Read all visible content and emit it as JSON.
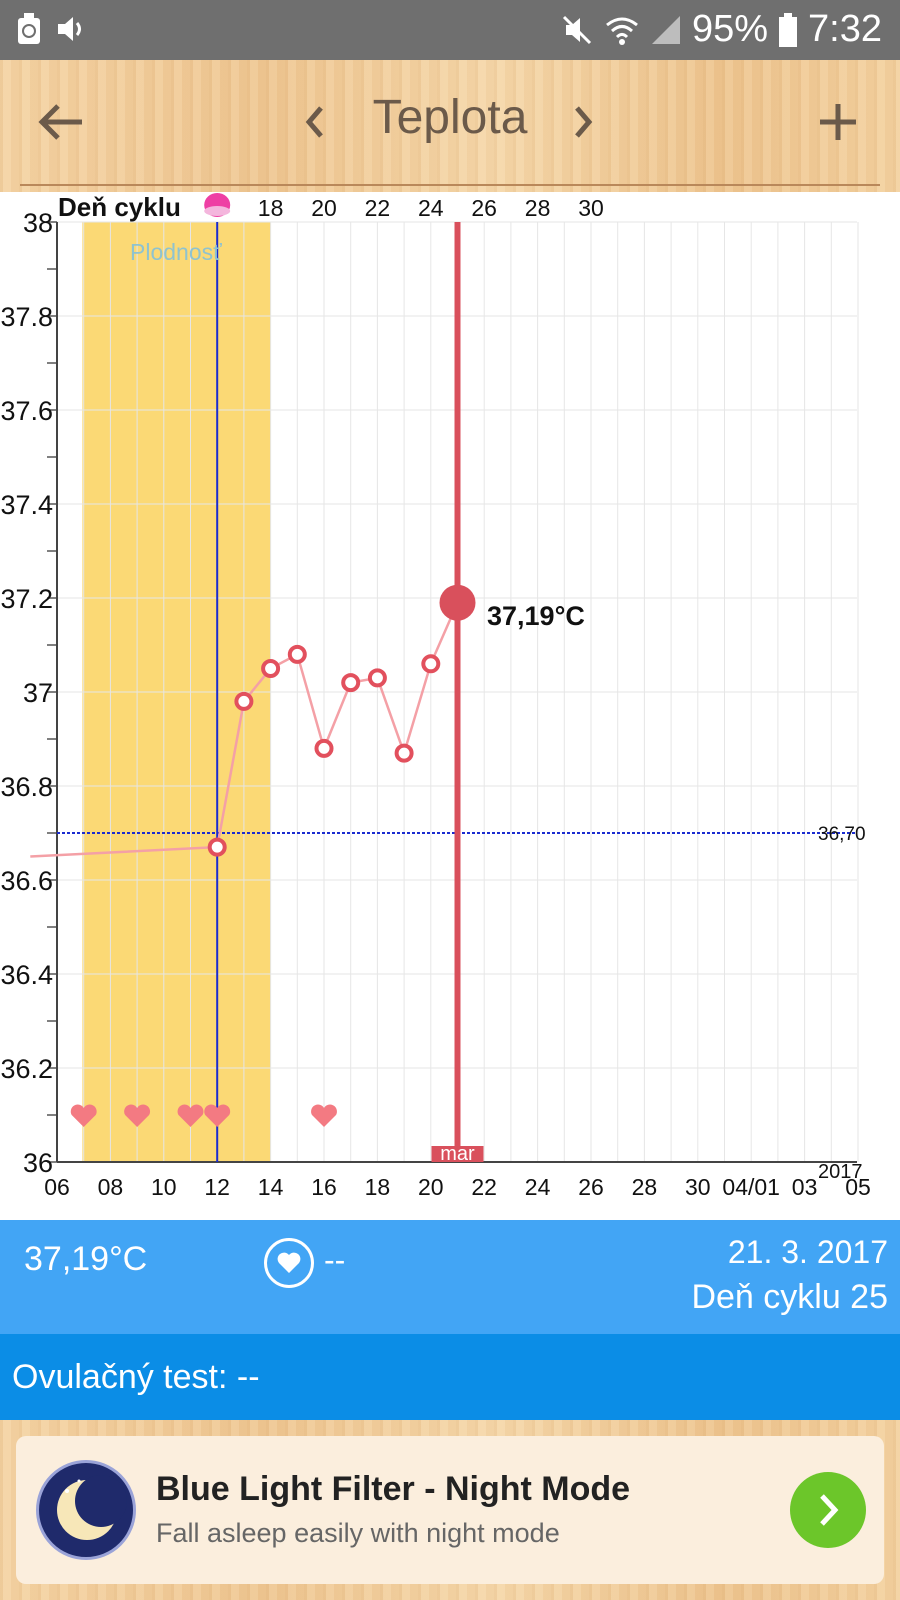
{
  "status_bar": {
    "battery_percent": "95%",
    "time": "7:32",
    "icons": [
      "recycle-icon",
      "volume-icon",
      "mute-icon",
      "wifi-icon",
      "signal-icon",
      "battery-icon"
    ]
  },
  "app_bar": {
    "title": "Teplota",
    "icons": [
      "back-arrow-icon",
      "chevron-left-icon",
      "chevron-right-icon",
      "plus-icon"
    ]
  },
  "chart": {
    "cycle_label": "Deň cyklu",
    "fertility_label": "Plodnosť",
    "threshold_label": "36,70",
    "year_label": "2017",
    "month_label": "mar",
    "selected_label": "37,19°C"
  },
  "chart_data": {
    "type": "line",
    "ylim": [
      36,
      38
    ],
    "y_ticks": [
      "38",
      "37.8",
      "37.6",
      "37.4",
      "37.2",
      "37",
      "36.8",
      "36.6",
      "36.4",
      "36.2",
      "36"
    ],
    "x_ticks": [
      "06",
      "08",
      "10",
      "12",
      "14",
      "16",
      "18",
      "20",
      "22",
      "24",
      "26",
      "28",
      "30",
      "04/01",
      "03",
      "05"
    ],
    "cycle_ticks": [
      "18",
      "20",
      "22",
      "24",
      "26",
      "28",
      "30"
    ],
    "x_index_range": [
      0,
      30
    ],
    "series": [
      {
        "x": [
          -1,
          6,
          7,
          8,
          9,
          10,
          11,
          12,
          13,
          14,
          15
        ],
        "y": [
          36.65,
          36.67,
          36.98,
          37.05,
          37.08,
          36.88,
          37.02,
          37.03,
          36.87,
          37.06,
          37.19
        ]
      }
    ],
    "fertile_window": [
      0.95,
      8
    ],
    "ovulation_index": 6,
    "selected_index": 15,
    "threshold": 36.7,
    "heart_indices": [
      1,
      3,
      5,
      6,
      10
    ],
    "colors": {
      "line": "#f4a0a6",
      "point": "#e2505d",
      "fertile": "#fbd975",
      "ovulation": "#1a2bd0",
      "selected": "#d9505c"
    }
  },
  "info_bar": {
    "temperature": "37,19°C",
    "intercourse": "--",
    "date": "21. 3. 2017",
    "cycle_day": "Deň cyklu 25"
  },
  "ovulation_test": {
    "label": "Ovulačný test: --"
  },
  "ad": {
    "title": "Blue Light Filter - Night Mode",
    "subtitle": "Fall asleep easily with night mode",
    "icons": [
      "moon-icon",
      "chevron-right-icon"
    ]
  }
}
